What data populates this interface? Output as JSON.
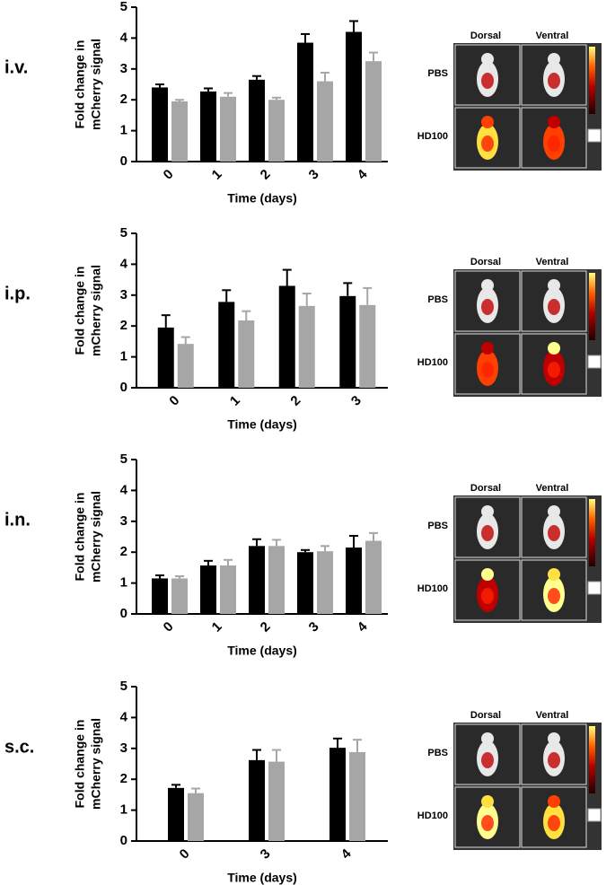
{
  "chart_data": [
    {
      "type": "bar",
      "title": "i.v.",
      "ylabel": [
        "Fold change in",
        "mCherry signal"
      ],
      "xlabel": "Time (days)",
      "categories": [
        "0",
        "1",
        "2",
        "3",
        "4"
      ],
      "series": [
        {
          "color": "#000000",
          "values": [
            2.4,
            2.27,
            2.65,
            3.85,
            4.2
          ],
          "errors": [
            0.1,
            0.1,
            0.12,
            0.28,
            0.35
          ]
        },
        {
          "color": "#a6a6a6",
          "values": [
            1.95,
            2.1,
            2.0,
            2.6,
            3.25
          ],
          "errors": [
            0.05,
            0.12,
            0.07,
            0.28,
            0.28
          ]
        }
      ],
      "ylim": [
        0,
        5
      ],
      "yticks": [
        0,
        1,
        2,
        3,
        4,
        5
      ],
      "image": {
        "columns": [
          "Dorsal",
          "Ventral"
        ],
        "rows": [
          "PBS",
          "HD100"
        ]
      }
    },
    {
      "type": "bar",
      "title": "i.p.",
      "ylabel": [
        "Fold change in",
        "mCherry signal"
      ],
      "xlabel": "Time (days)",
      "categories": [
        "0",
        "1",
        "2",
        "3"
      ],
      "series": [
        {
          "color": "#000000",
          "values": [
            1.95,
            2.78,
            3.3,
            2.97
          ],
          "errors": [
            0.4,
            0.38,
            0.52,
            0.42
          ]
        },
        {
          "color": "#a6a6a6",
          "values": [
            1.42,
            2.18,
            2.65,
            2.68
          ],
          "errors": [
            0.22,
            0.3,
            0.4,
            0.55
          ]
        }
      ],
      "ylim": [
        0,
        5
      ],
      "yticks": [
        0,
        1,
        2,
        3,
        4,
        5
      ],
      "image": {
        "columns": [
          "Dorsal",
          "Ventral"
        ],
        "rows": [
          "PBS",
          "HD100"
        ]
      }
    },
    {
      "type": "bar",
      "title": "i.n.",
      "ylabel": [
        "Fold change in",
        "mCherry signal"
      ],
      "xlabel": "Time (days)",
      "categories": [
        "0",
        "1",
        "2",
        "3",
        "4"
      ],
      "series": [
        {
          "color": "#000000",
          "values": [
            1.15,
            1.57,
            2.2,
            2.0,
            2.15
          ],
          "errors": [
            0.1,
            0.15,
            0.22,
            0.07,
            0.38
          ]
        },
        {
          "color": "#a6a6a6",
          "values": [
            1.15,
            1.57,
            2.2,
            2.03,
            2.37
          ],
          "errors": [
            0.07,
            0.18,
            0.2,
            0.17,
            0.25
          ]
        }
      ],
      "ylim": [
        0,
        5
      ],
      "yticks": [
        0,
        1,
        2,
        3,
        4,
        5
      ],
      "image": {
        "columns": [
          "Dorsal",
          "Ventral"
        ],
        "rows": [
          "PBS",
          "HD100"
        ]
      }
    },
    {
      "type": "bar",
      "title": "s.c.",
      "ylabel": [
        "Fold change in",
        "mCherry signal"
      ],
      "xlabel": "Time (days)",
      "categories": [
        "0",
        "3",
        "4"
      ],
      "series": [
        {
          "color": "#000000",
          "values": [
            1.72,
            2.62,
            3.02
          ],
          "errors": [
            0.1,
            0.33,
            0.3
          ]
        },
        {
          "color": "#a6a6a6",
          "values": [
            1.55,
            2.57,
            2.88
          ],
          "errors": [
            0.15,
            0.38,
            0.4
          ]
        }
      ],
      "ylim": [
        0,
        5
      ],
      "yticks": [
        0,
        1,
        2,
        3,
        4,
        5
      ],
      "image": {
        "columns": [
          "Dorsal",
          "Ventral"
        ],
        "rows": [
          "PBS",
          "HD100"
        ]
      }
    }
  ]
}
